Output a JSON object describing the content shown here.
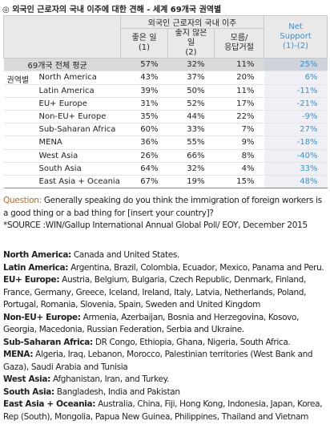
{
  "title": "◎ 외국인 근로자의 국내 이주에 대한 견해 - 세계 69개국 권역별",
  "table": {
    "group_header": "외국인 근로자의 국내 이주",
    "net_header": "Net\nSupport\n(1)-(2)",
    "columns": [
      "좋은 일\n(1)",
      "좋지 않은 일\n(2)",
      "모름/\n응답거절"
    ],
    "average": {
      "label": "69개국 전체 평균",
      "cells": [
        "57%",
        "32%",
        "11%",
        "25%"
      ]
    },
    "region_label": "권역별",
    "rows": [
      {
        "label": "North America",
        "cells": [
          "43%",
          "37%",
          "20%",
          "6%"
        ]
      },
      {
        "label": "Latin America",
        "cells": [
          "39%",
          "50%",
          "11%",
          "-11%"
        ]
      },
      {
        "label": "EU+ Europe",
        "cells": [
          "31%",
          "52%",
          "17%",
          "-21%"
        ]
      },
      {
        "label": "Non-EU+ Europe",
        "cells": [
          "35%",
          "44%",
          "22%",
          "-9%"
        ]
      },
      {
        "label": "Sub-Saharan Africa",
        "cells": [
          "60%",
          "33%",
          "7%",
          "27%"
        ]
      },
      {
        "label": "MENA",
        "cells": [
          "36%",
          "55%",
          "9%",
          "-18%"
        ]
      },
      {
        "label": "West Asia",
        "cells": [
          "26%",
          "66%",
          "8%",
          "-40%"
        ]
      },
      {
        "label": "South Asia",
        "cells": [
          "64%",
          "32%",
          "4%",
          "33%"
        ]
      },
      {
        "label": "East Asia + Oceania",
        "cells": [
          "67%",
          "19%",
          "15%",
          "48%"
        ]
      }
    ]
  },
  "notes": {
    "question_label": "Question:",
    "question": " Generally speaking do you think the immigration of foreign workers is a good thing or a bad thing for [insert your country]?",
    "source": "*SOURCE :WIN/Gallup International Annual Global Poll/ EOY, December 2015"
  },
  "definitions": [
    {
      "name": "North America:",
      "text": " Canada and United States."
    },
    {
      "name": "Latin America:",
      "text": " Argentina, Brazil, Colombia, Ecuador, Mexico, Panama and Peru."
    },
    {
      "name": "EU+ Europe:",
      "text": " Austria, Belgium, Bulgaria, Czech Republic, Denmark, Finland, France, Germany, Greece, Iceland, Ireland, Italy, Latvia, Netherlands, Poland, Portugal, Romania, Slovenia, Spain, Sweden and United Kingdom"
    },
    {
      "name": "Non-EU+ Europe:",
      "text": " Armenia, Azerbaijan, Bosnia and Herzegovina, Kosovo, Georgia, Macedonia, Russian Federation, Serbia and Ukraine."
    },
    {
      "name": "Sub-Saharan Africa:",
      "text": " DR Congo, Ethiopia, Ghana, Nigeria, South Africa."
    },
    {
      "name": "MENA:",
      "text": " Algeria, Iraq, Lebanon, Morocco, Palestinian territories (West Bank and Gaza), Saudi Arabia and Tunisia"
    },
    {
      "name": "West Asia:",
      "text": " Afghanistan, Iran, and Turkey."
    },
    {
      "name": "South Asia:",
      "text": " Bangladesh, India and Pakistan"
    },
    {
      "name": "East Asia + Oceania:",
      "text": " Australia, China, Fiji, Hong Kong, Indonesia, Japan, Korea, Rep (South), Mongolia, Papua New Guinea, Philippines, Thailand and Vietnam"
    }
  ]
}
